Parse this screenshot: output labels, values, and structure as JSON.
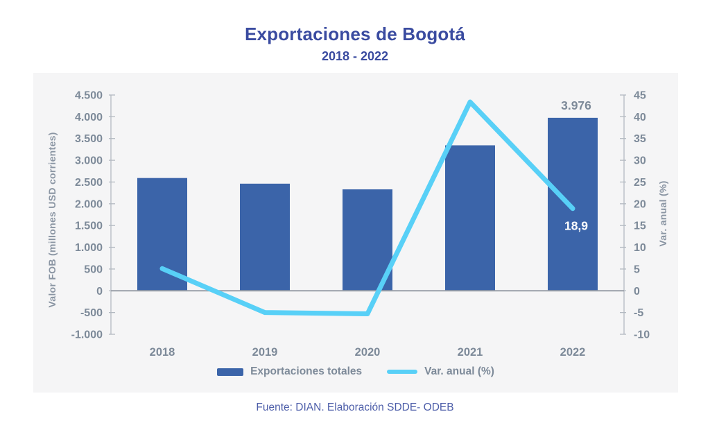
{
  "header": {
    "title": "Exportaciones de Bogotá",
    "subtitle": "2018 - 2022"
  },
  "footer": {
    "source": "Fuente: DIAN. Elaboración SDDE- ODEB"
  },
  "theme": {
    "page_bg": "#ffffff",
    "card_bg": "#f5f5f6",
    "title_color": "#3a4ba0",
    "bar_color": "#3b64a9",
    "line_color": "#58d0f7",
    "tick_label_color": "#7d8a99",
    "axis_title_color": "#8a95a3",
    "axis_line_color": "#b3b9c1",
    "zero_line_color": "#999fa8",
    "bar_value_label_color": "#7d8a99",
    "line_value_label_color": "#ffffff",
    "footer_color": "#4d5ea9"
  },
  "chart_data": {
    "type": "combo_bar_line",
    "title": "Exportaciones de Bogotá",
    "subtitle": "2018 - 2022",
    "categories": [
      "2018",
      "2019",
      "2020",
      "2021",
      "2022"
    ],
    "series": [
      {
        "name": "Exportaciones totales",
        "type": "bar",
        "axis": "left",
        "values": [
          2592,
          2462,
          2331,
          3344,
          3976
        ]
      },
      {
        "name": "Var. anual (%)",
        "type": "line",
        "axis": "right",
        "values": [
          5.1,
          -5.0,
          -5.3,
          43.4,
          18.9
        ]
      }
    ],
    "left_axis": {
      "label": "Valor FOB (millones USD corrientes)",
      "min": -1000,
      "max": 4500,
      "step": 500,
      "tick_labels": [
        "4.500",
        "4.000",
        "3.500",
        "3.000",
        "2.500",
        "2.000",
        "1.500",
        "1.000",
        "500",
        "0",
        "-500",
        "-1.000"
      ]
    },
    "right_axis": {
      "label": "Var. anual (%)",
      "min": -10,
      "max": 45,
      "step": 5,
      "tick_labels": [
        "45",
        "40",
        "35",
        "30",
        "25",
        "20",
        "15",
        "10",
        "5",
        "0",
        "-5",
        "-10"
      ]
    },
    "annotations": [
      {
        "text": "3.976",
        "series": "Exportaciones totales",
        "index": 4,
        "placement": "above_bar"
      },
      {
        "text": "18,9",
        "series": "Var. anual (%)",
        "index": 4,
        "placement": "below_line_point"
      }
    ],
    "legend_position": "bottom",
    "grid": false
  }
}
